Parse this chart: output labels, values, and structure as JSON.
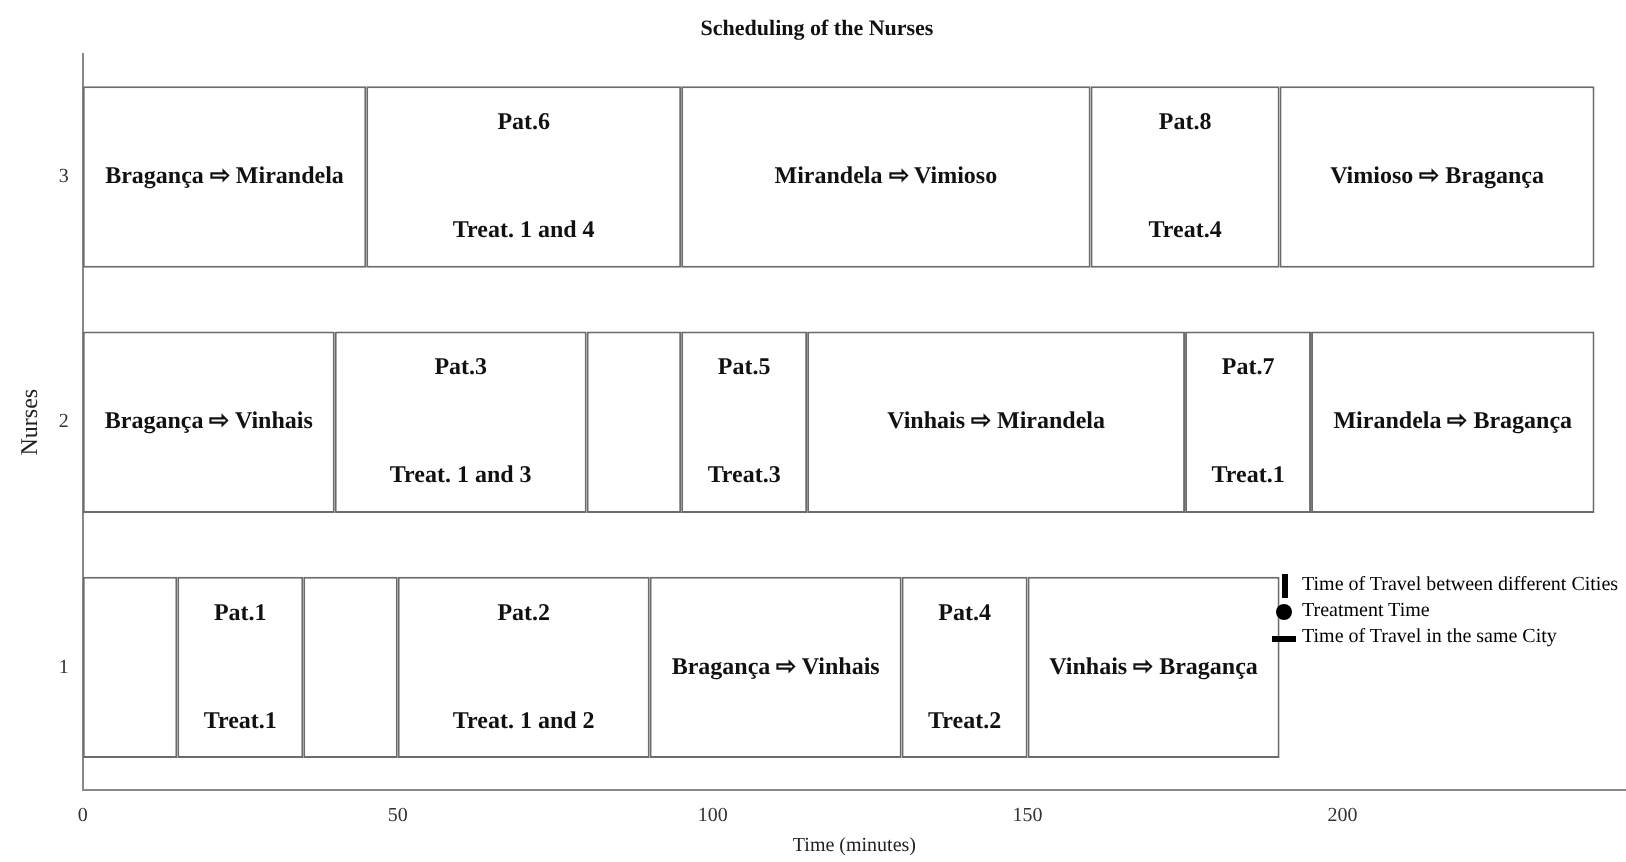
{
  "chart_data": {
    "type": "bar",
    "orientation": "horizontal",
    "stacked": true,
    "title": "Scheduling of the Nurses",
    "xlabel": "Time (minutes)",
    "ylabel": "Nurses",
    "categories": [
      "3",
      "2",
      "1"
    ],
    "xlim": [
      0,
      245
    ],
    "xticks": [
      0,
      50,
      100,
      150,
      200
    ],
    "grid": false,
    "legend": false,
    "series": [
      {
        "color": "#ffffff",
        "values": [
          45,
          40,
          15
        ],
        "value_labels": [
          "Bragança ⇨ Mirandela",
          "Bragança ⇨ Vinhais",
          null
        ]
      },
      {
        "color": "#ffffff",
        "values": [
          50,
          40,
          20
        ],
        "value_labels": [
          "Pat.6\nTreat. 1 and 4",
          "Pat.3\nTreat. 1 and 3",
          "Pat.1\nTreat.1"
        ]
      },
      {
        "color": "#ffffff",
        "values": [
          65,
          15,
          15
        ],
        "value_labels": [
          "Mirandela ⇨ Vimioso",
          null,
          null
        ]
      },
      {
        "color": "#ffffff",
        "values": [
          30,
          20,
          40
        ],
        "value_labels": [
          "Pat.8\nTreat.4",
          "Pat.5\nTreat.3",
          "Pat.2\nTreat. 1 and 2"
        ]
      },
      {
        "color": "#ffffff",
        "values": [
          50,
          60,
          40
        ],
        "value_labels": [
          "Vimioso ⇨ Bragança",
          "Vinhais ⇨ Mirandela",
          "Bragança ⇨ Vinhais"
        ]
      },
      {
        "color": "#ffffff",
        "values": [
          null,
          20,
          20
        ],
        "value_labels": [
          null,
          "Pat.7\nTreat.1",
          "Pat.4\nTreat.2"
        ]
      },
      {
        "color": "#ffffff",
        "values": [
          null,
          45,
          40
        ],
        "value_labels": [
          null,
          "Mirandela ⇨ Bragança",
          "Vinhais ⇨ Bragança"
        ]
      }
    ],
    "annotations": [
      "Time of Travel between different Cities",
      "Treatment Time",
      "Time of Travel in the same City"
    ]
  }
}
